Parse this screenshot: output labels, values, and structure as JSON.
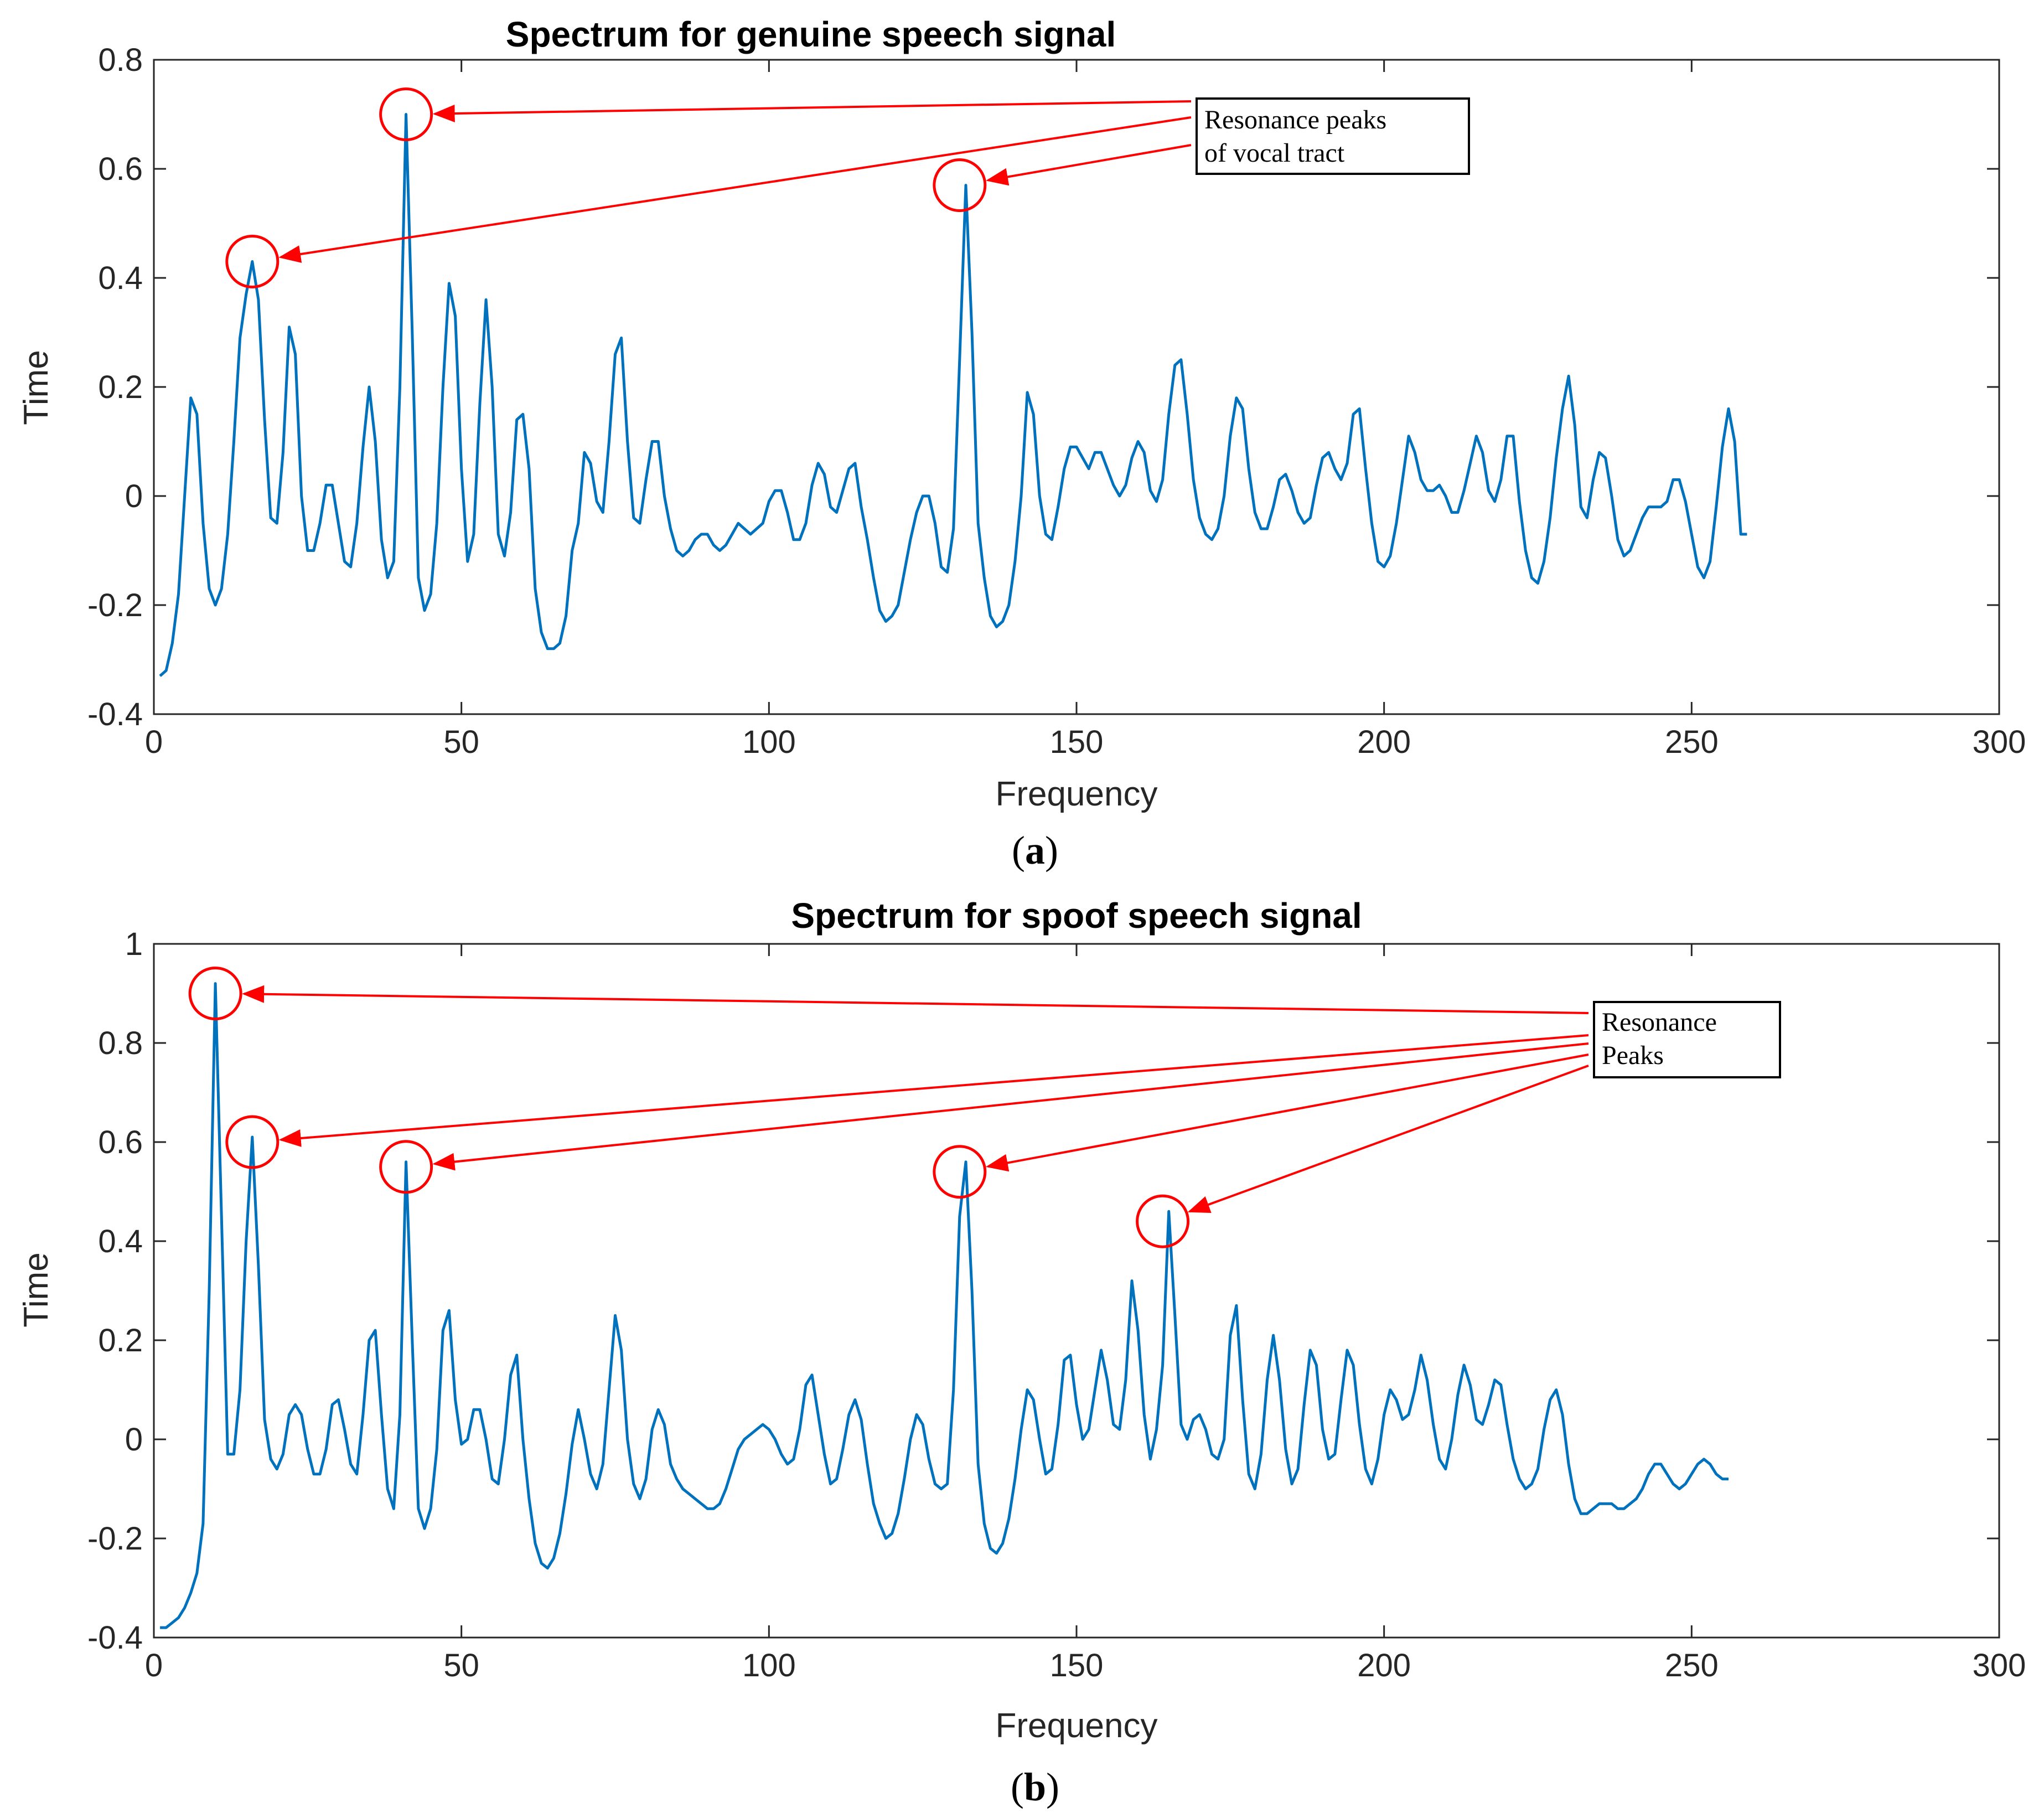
{
  "figure": {
    "series_color": "#0072BD",
    "annotation_color": "#FF0000"
  },
  "chart_data": [
    {
      "type": "line",
      "panel": "a",
      "caption_label": "a",
      "title": "Spectrum for genuine speech signal",
      "xlabel": "Frequency",
      "ylabel": "Time",
      "xlim": [
        0,
        300
      ],
      "ylim": [
        -0.4,
        0.8
      ],
      "xticks": [
        0,
        50,
        100,
        150,
        200,
        250,
        300
      ],
      "yticks": [
        -0.4,
        -0.2,
        0,
        0.2,
        0.4,
        0.6,
        0.8
      ],
      "ytick_labels": [
        "-0.4",
        "-0.2",
        "0",
        "0.2",
        "0.4",
        "0.6",
        "0.8"
      ],
      "grid": false,
      "series": [
        {
          "name": "genuine speech spectrum",
          "x_start": 1,
          "x_step": 1,
          "values": [
            -0.33,
            -0.32,
            -0.27,
            -0.18,
            0.0,
            0.18,
            0.15,
            -0.05,
            -0.17,
            -0.2,
            -0.17,
            -0.07,
            0.1,
            0.29,
            0.37,
            0.43,
            0.36,
            0.14,
            -0.04,
            -0.05,
            0.08,
            0.31,
            0.26,
            0.0,
            -0.1,
            -0.1,
            -0.05,
            0.02,
            0.02,
            -0.05,
            -0.12,
            -0.13,
            -0.05,
            0.09,
            0.2,
            0.1,
            -0.08,
            -0.15,
            -0.12,
            0.2,
            0.7,
            0.3,
            -0.15,
            -0.21,
            -0.18,
            -0.05,
            0.2,
            0.39,
            0.33,
            0.05,
            -0.12,
            -0.07,
            0.17,
            0.36,
            0.2,
            -0.07,
            -0.11,
            -0.03,
            0.14,
            0.15,
            0.05,
            -0.17,
            -0.25,
            -0.28,
            -0.28,
            -0.27,
            -0.22,
            -0.1,
            -0.05,
            0.08,
            0.06,
            -0.01,
            -0.03,
            0.1,
            0.26,
            0.29,
            0.1,
            -0.04,
            -0.05,
            0.03,
            0.1,
            0.1,
            0.0,
            -0.06,
            -0.1,
            -0.11,
            -0.1,
            -0.08,
            -0.07,
            -0.07,
            -0.09,
            -0.1,
            -0.09,
            -0.07,
            -0.05,
            -0.06,
            -0.07,
            -0.06,
            -0.05,
            -0.01,
            0.01,
            0.01,
            -0.03,
            -0.08,
            -0.08,
            -0.05,
            0.02,
            0.06,
            0.04,
            -0.02,
            -0.03,
            0.01,
            0.05,
            0.06,
            -0.02,
            -0.08,
            -0.15,
            -0.21,
            -0.23,
            -0.22,
            -0.2,
            -0.14,
            -0.08,
            -0.03,
            0.0,
            0.0,
            -0.05,
            -0.13,
            -0.14,
            -0.06,
            0.25,
            0.57,
            0.3,
            -0.05,
            -0.15,
            -0.22,
            -0.24,
            -0.23,
            -0.2,
            -0.12,
            0.0,
            0.19,
            0.15,
            0.0,
            -0.07,
            -0.08,
            -0.02,
            0.05,
            0.09,
            0.09,
            0.07,
            0.05,
            0.08,
            0.08,
            0.05,
            0.02,
            0.0,
            0.02,
            0.07,
            0.1,
            0.08,
            0.01,
            -0.01,
            0.03,
            0.15,
            0.24,
            0.25,
            0.15,
            0.03,
            -0.04,
            -0.07,
            -0.08,
            -0.06,
            0.0,
            0.11,
            0.18,
            0.16,
            0.05,
            -0.03,
            -0.06,
            -0.06,
            -0.02,
            0.03,
            0.04,
            0.01,
            -0.03,
            -0.05,
            -0.04,
            0.02,
            0.07,
            0.08,
            0.05,
            0.03,
            0.06,
            0.15,
            0.16,
            0.05,
            -0.05,
            -0.12,
            -0.13,
            -0.11,
            -0.05,
            0.03,
            0.11,
            0.08,
            0.03,
            0.01,
            0.01,
            0.02,
            0.0,
            -0.03,
            -0.03,
            0.01,
            0.06,
            0.11,
            0.08,
            0.01,
            -0.01,
            0.03,
            0.11,
            0.11,
            -0.01,
            -0.1,
            -0.15,
            -0.16,
            -0.12,
            -0.04,
            0.07,
            0.16,
            0.22,
            0.13,
            -0.02,
            -0.04,
            0.03,
            0.08,
            0.07,
            0.0,
            -0.08,
            -0.11,
            -0.1,
            -0.07,
            -0.04,
            -0.02,
            -0.02,
            -0.02,
            -0.01,
            0.03,
            0.03,
            -0.01,
            -0.07,
            -0.13,
            -0.15,
            -0.12,
            -0.02,
            0.09,
            0.16,
            0.1,
            -0.07,
            -0.07
          ]
        }
      ],
      "callout": {
        "lines": [
          "Resonance peaks",
          "of vocal tract"
        ],
        "highlighted_peaks": [
          {
            "x": 16,
            "y": 0.43
          },
          {
            "x": 41,
            "y": 0.7
          },
          {
            "x": 131,
            "y": 0.57
          }
        ]
      }
    },
    {
      "type": "line",
      "panel": "b",
      "caption_label": "b",
      "title": "Spectrum for spoof speech signal",
      "xlabel": "Frequency",
      "ylabel": "Time",
      "xlim": [
        0,
        300
      ],
      "ylim": [
        -0.4,
        1.0
      ],
      "xticks": [
        0,
        50,
        100,
        150,
        200,
        250,
        300
      ],
      "yticks": [
        -0.4,
        -0.2,
        0,
        0.2,
        0.4,
        0.6,
        0.8,
        1.0
      ],
      "ytick_labels": [
        "-0.4",
        "-0.2",
        "0",
        "0.2",
        "0.4",
        "0.6",
        "0.8",
        "1"
      ],
      "grid": false,
      "series": [
        {
          "name": "spoof speech spectrum",
          "x_start": 1,
          "x_step": 1,
          "values": [
            -0.38,
            -0.38,
            -0.37,
            -0.36,
            -0.34,
            -0.31,
            -0.27,
            -0.17,
            0.3,
            0.92,
            0.45,
            -0.03,
            -0.03,
            0.1,
            0.4,
            0.61,
            0.35,
            0.04,
            -0.04,
            -0.06,
            -0.03,
            0.05,
            0.07,
            0.05,
            -0.02,
            -0.07,
            -0.07,
            -0.02,
            0.07,
            0.08,
            0.02,
            -0.05,
            -0.07,
            0.05,
            0.2,
            0.22,
            0.05,
            -0.1,
            -0.14,
            0.05,
            0.56,
            0.2,
            -0.14,
            -0.18,
            -0.14,
            -0.02,
            0.22,
            0.26,
            0.08,
            -0.01,
            0.0,
            0.06,
            0.06,
            0.0,
            -0.08,
            -0.09,
            0.0,
            0.13,
            0.17,
            0.0,
            -0.12,
            -0.21,
            -0.25,
            -0.26,
            -0.24,
            -0.19,
            -0.11,
            -0.01,
            0.06,
            0.0,
            -0.07,
            -0.1,
            -0.05,
            0.1,
            0.25,
            0.18,
            0.0,
            -0.09,
            -0.12,
            -0.08,
            0.02,
            0.06,
            0.03,
            -0.05,
            -0.08,
            -0.1,
            -0.11,
            -0.12,
            -0.13,
            -0.14,
            -0.14,
            -0.13,
            -0.1,
            -0.06,
            -0.02,
            0.0,
            0.01,
            0.02,
            0.03,
            0.02,
            0.0,
            -0.03,
            -0.05,
            -0.04,
            0.02,
            0.11,
            0.13,
            0.05,
            -0.03,
            -0.09,
            -0.08,
            -0.02,
            0.05,
            0.08,
            0.04,
            -0.05,
            -0.13,
            -0.17,
            -0.2,
            -0.19,
            -0.15,
            -0.08,
            0.0,
            0.05,
            0.03,
            -0.04,
            -0.09,
            -0.1,
            -0.09,
            0.1,
            0.45,
            0.56,
            0.3,
            -0.05,
            -0.17,
            -0.22,
            -0.23,
            -0.21,
            -0.16,
            -0.08,
            0.02,
            0.1,
            0.08,
            0.0,
            -0.07,
            -0.06,
            0.03,
            0.16,
            0.17,
            0.07,
            0.0,
            0.02,
            0.1,
            0.18,
            0.12,
            0.03,
            0.02,
            0.12,
            0.32,
            0.22,
            0.05,
            -0.04,
            0.02,
            0.15,
            0.46,
            0.25,
            0.03,
            0.0,
            0.04,
            0.05,
            0.02,
            -0.03,
            -0.04,
            0.0,
            0.21,
            0.27,
            0.08,
            -0.07,
            -0.1,
            -0.03,
            0.12,
            0.21,
            0.12,
            -0.02,
            -0.09,
            -0.06,
            0.07,
            0.18,
            0.15,
            0.02,
            -0.04,
            -0.03,
            0.08,
            0.18,
            0.15,
            0.03,
            -0.06,
            -0.09,
            -0.04,
            0.05,
            0.1,
            0.08,
            0.04,
            0.05,
            0.1,
            0.17,
            0.12,
            0.03,
            -0.04,
            -0.06,
            0.0,
            0.09,
            0.15,
            0.11,
            0.04,
            0.03,
            0.07,
            0.12,
            0.11,
            0.03,
            -0.04,
            -0.08,
            -0.1,
            -0.09,
            -0.06,
            0.02,
            0.08,
            0.1,
            0.05,
            -0.05,
            -0.12,
            -0.15,
            -0.15,
            -0.14,
            -0.13,
            -0.13,
            -0.13,
            -0.14,
            -0.14,
            -0.13,
            -0.12,
            -0.1,
            -0.07,
            -0.05,
            -0.05,
            -0.07,
            -0.09,
            -0.1,
            -0.09,
            -0.07,
            -0.05,
            -0.04,
            -0.05,
            -0.07,
            -0.08,
            -0.08
          ]
        }
      ],
      "callout": {
        "lines": [
          "Resonance",
          "Peaks"
        ],
        "highlighted_peaks": [
          {
            "x": 10,
            "y": 0.9
          },
          {
            "x": 16,
            "y": 0.6
          },
          {
            "x": 41,
            "y": 0.55
          },
          {
            "x": 131,
            "y": 0.54
          },
          {
            "x": 164,
            "y": 0.44
          }
        ]
      }
    }
  ]
}
